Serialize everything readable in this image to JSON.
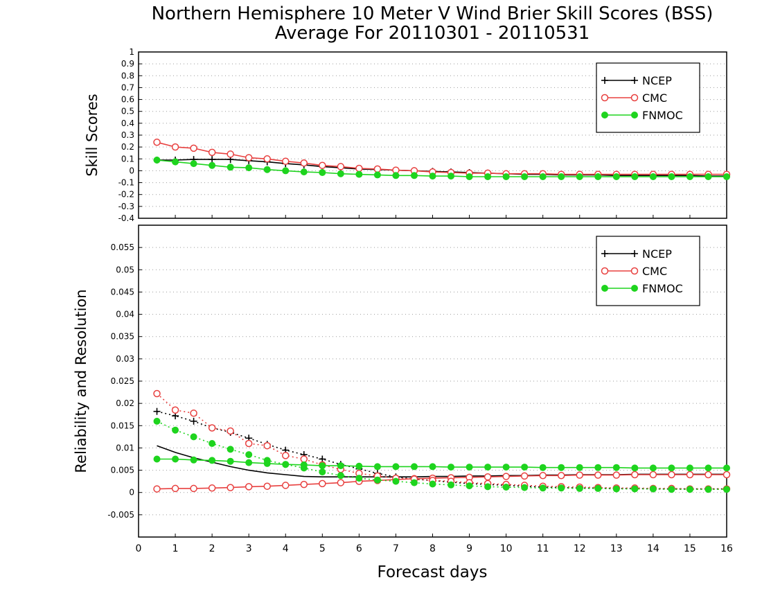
{
  "title_line1": "Northern Hemisphere 10 Meter V Wind Brier Skill Scores (BSS)",
  "title_line2": "Average For 20110301 - 20110531",
  "xlabel": "Forecast days",
  "colors": {
    "NCEP": "#000000",
    "CMC": "#e8403f",
    "FNMOC": "#1ed41e"
  },
  "chart_data": [
    {
      "type": "line",
      "ylabel": "Skill Scores",
      "xlim": [
        0,
        16
      ],
      "ylim": [
        -0.4,
        1
      ],
      "y_ticks": [
        "-0.4",
        "-0.3",
        "-0.2",
        "-0.1",
        "0",
        "0.1",
        "0.2",
        "0.3",
        "0.4",
        "0.5",
        "0.6",
        "0.7",
        "0.8",
        "0.9",
        "1"
      ],
      "grid": true,
      "legend_placement": "top-right",
      "legend": [
        "NCEP",
        "CMC",
        "FNMOC"
      ],
      "x": [
        0.5,
        1,
        1.5,
        2,
        2.5,
        3,
        3.5,
        4,
        4.5,
        5,
        5.5,
        6,
        6.5,
        7,
        7.5,
        8,
        8.5,
        9,
        9.5,
        10,
        10.5,
        11,
        11.5,
        12,
        12.5,
        13,
        13.5,
        14,
        14.5,
        15,
        15.5,
        16
      ],
      "series": [
        {
          "name": "NCEP",
          "style": "solid",
          "marker": "plus",
          "values": [
            0.09,
            0.09,
            0.095,
            0.095,
            0.095,
            0.085,
            0.075,
            0.06,
            0.05,
            0.035,
            0.025,
            0.015,
            0.01,
            0.005,
            0.0,
            -0.005,
            -0.01,
            -0.015,
            -0.02,
            -0.025,
            -0.03,
            -0.03,
            -0.035,
            -0.035,
            -0.035,
            -0.04,
            -0.04,
            -0.04,
            -0.04,
            -0.04,
            -0.045,
            -0.045
          ]
        },
        {
          "name": "CMC",
          "style": "solid",
          "marker": "open-circle",
          "values": [
            0.24,
            0.2,
            0.19,
            0.155,
            0.14,
            0.11,
            0.1,
            0.08,
            0.065,
            0.045,
            0.035,
            0.02,
            0.015,
            0.005,
            0.0,
            -0.01,
            -0.015,
            -0.02,
            -0.02,
            -0.025,
            -0.025,
            -0.025,
            -0.03,
            -0.03,
            -0.03,
            -0.03,
            -0.03,
            -0.03,
            -0.03,
            -0.03,
            -0.03,
            -0.03
          ]
        },
        {
          "name": "FNMOC",
          "style": "solid",
          "marker": "filled-circle",
          "values": [
            0.09,
            0.075,
            0.06,
            0.045,
            0.03,
            0.025,
            0.01,
            0.0,
            -0.01,
            -0.015,
            -0.025,
            -0.03,
            -0.035,
            -0.04,
            -0.04,
            -0.045,
            -0.045,
            -0.05,
            -0.05,
            -0.05,
            -0.05,
            -0.05,
            -0.05,
            -0.05,
            -0.05,
            -0.05,
            -0.05,
            -0.05,
            -0.05,
            -0.05,
            -0.05,
            -0.05
          ]
        }
      ]
    },
    {
      "type": "line",
      "ylabel": "Reliability and Resolution",
      "xlim": [
        0,
        16
      ],
      "ylim": [
        -0.01,
        0.06
      ],
      "y_ticks": [
        "-0.005",
        "0",
        "0.005",
        "0.01",
        "0.015",
        "0.02",
        "0.025",
        "0.03",
        "0.035",
        "0.04",
        "0.045",
        "0.05",
        "0.055"
      ],
      "x_ticks": [
        "0",
        "1",
        "2",
        "3",
        "4",
        "5",
        "6",
        "7",
        "8",
        "9",
        "10",
        "11",
        "12",
        "13",
        "14",
        "15",
        "16"
      ],
      "grid": true,
      "legend_placement": "top-right",
      "legend": [
        "NCEP",
        "CMC",
        "FNMOC"
      ],
      "x": [
        0.5,
        1,
        1.5,
        2,
        2.5,
        3,
        3.5,
        4,
        4.5,
        5,
        5.5,
        6,
        6.5,
        7,
        7.5,
        8,
        8.5,
        9,
        9.5,
        10,
        10.5,
        11,
        11.5,
        12,
        12.5,
        13,
        13.5,
        14,
        14.5,
        15,
        15.5,
        16
      ],
      "series": [
        {
          "name": "NCEP",
          "line": "reliability",
          "style": "solid",
          "marker": "none",
          "values": [
            0.0105,
            0.009,
            0.0078,
            0.0068,
            0.0058,
            0.005,
            0.0044,
            0.004,
            0.0036,
            0.0035,
            0.0035,
            0.0035,
            0.0035,
            0.0035,
            0.0035,
            0.0036,
            0.0036,
            0.0037,
            0.0037,
            0.0038,
            0.0038,
            0.0039,
            0.0039,
            0.004,
            0.004,
            0.004,
            0.0041,
            0.0041,
            0.0041,
            0.0041,
            0.0041,
            0.0041
          ]
        },
        {
          "name": "NCEP",
          "line": "resolution",
          "style": "dotted",
          "marker": "plus",
          "values": [
            0.0182,
            0.0172,
            0.016,
            0.0145,
            0.0135,
            0.0122,
            0.0108,
            0.0095,
            0.0085,
            0.0075,
            0.0063,
            0.0053,
            0.0043,
            0.0035,
            0.003,
            0.0027,
            0.0023,
            0.002,
            0.0018,
            0.0016,
            0.0014,
            0.0012,
            0.0011,
            0.001,
            0.001,
            0.0009,
            0.0009,
            0.0008,
            0.0008,
            0.0008,
            0.0008,
            0.0008
          ]
        },
        {
          "name": "CMC",
          "line": "reliability",
          "style": "solid",
          "marker": "open-circle",
          "values": [
            0.0008,
            0.0009,
            0.0009,
            0.001,
            0.0011,
            0.0013,
            0.0014,
            0.0016,
            0.0018,
            0.002,
            0.0022,
            0.0025,
            0.0027,
            0.0029,
            0.0031,
            0.0032,
            0.0033,
            0.0034,
            0.0035,
            0.0036,
            0.0037,
            0.0038,
            0.0038,
            0.0039,
            0.0039,
            0.0039,
            0.004,
            0.004,
            0.004,
            0.004,
            0.004,
            0.004
          ]
        },
        {
          "name": "CMC",
          "line": "resolution",
          "style": "dotted",
          "marker": "open-circle",
          "values": [
            0.0222,
            0.0185,
            0.0178,
            0.0145,
            0.0138,
            0.011,
            0.0105,
            0.0083,
            0.0075,
            0.0062,
            0.0052,
            0.0043,
            0.0037,
            0.0032,
            0.003,
            0.0027,
            0.0025,
            0.0022,
            0.002,
            0.0018,
            0.0016,
            0.0014,
            0.0013,
            0.0012,
            0.0011,
            0.001,
            0.001,
            0.0009,
            0.0009,
            0.0008,
            0.0008,
            0.0008
          ]
        },
        {
          "name": "FNMOC",
          "line": "reliability",
          "style": "solid",
          "marker": "filled-circle",
          "values": [
            0.0075,
            0.0075,
            0.0073,
            0.0072,
            0.007,
            0.0067,
            0.0065,
            0.0063,
            0.0062,
            0.006,
            0.006,
            0.0059,
            0.0058,
            0.0058,
            0.0058,
            0.0058,
            0.0057,
            0.0057,
            0.0057,
            0.0057,
            0.0057,
            0.0056,
            0.0056,
            0.0056,
            0.0056,
            0.0056,
            0.0055,
            0.0055,
            0.0055,
            0.0055,
            0.0055,
            0.0055
          ]
        },
        {
          "name": "FNMOC",
          "line": "resolution",
          "style": "dotted",
          "marker": "filled-circle",
          "values": [
            0.016,
            0.014,
            0.0125,
            0.011,
            0.0097,
            0.0085,
            0.0072,
            0.0063,
            0.0055,
            0.0046,
            0.0038,
            0.0032,
            0.0028,
            0.0025,
            0.0022,
            0.0019,
            0.0017,
            0.0015,
            0.0013,
            0.0012,
            0.0011,
            0.001,
            0.001,
            0.0009,
            0.0009,
            0.0008,
            0.0008,
            0.0008,
            0.0007,
            0.0007,
            0.0007,
            0.0007
          ]
        }
      ]
    }
  ]
}
